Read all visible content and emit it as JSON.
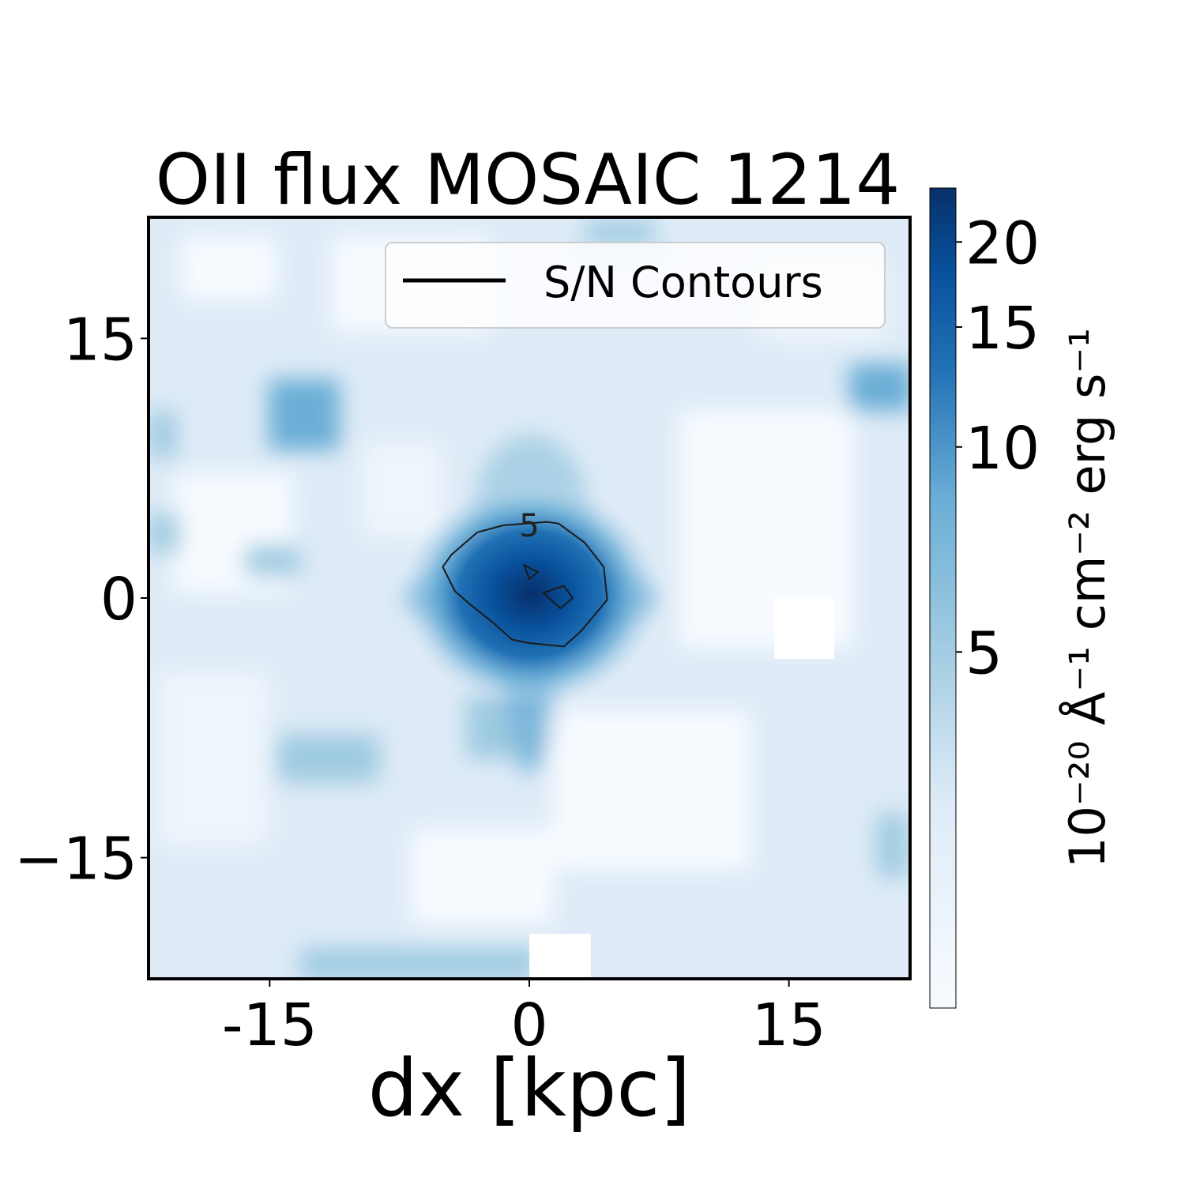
{
  "chart_data": {
    "type": "heatmap",
    "title": "OII flux MOSAIC 1214",
    "xlabel": "dx [kpc]",
    "ylabel": "",
    "xlim": [
      -22,
      22
    ],
    "ylim": [
      -22,
      22
    ],
    "x_ticks": [
      {
        "value": -15,
        "label": "-15"
      },
      {
        "value": 0,
        "label": "0"
      },
      {
        "value": 15,
        "label": "15"
      }
    ],
    "y_ticks": [
      {
        "value": 15,
        "label": "15"
      },
      {
        "value": 0,
        "label": "0"
      },
      {
        "value": -15,
        "label": "−15"
      }
    ],
    "colormap": "Blues",
    "colors": {
      "low": "#f7fbff",
      "mid": "#6baed6",
      "high": "#08306b"
    },
    "colorbar": {
      "scale": "log",
      "range": [
        1.5,
        24
      ],
      "ticks": [
        {
          "value": 5,
          "label": "5"
        },
        {
          "value": 10,
          "label": "10"
        },
        {
          "value": 15,
          "label": "15"
        },
        {
          "value": 20,
          "label": "20"
        }
      ],
      "label": "10⁻²⁰ Å⁻¹ cm⁻² erg s⁻¹"
    },
    "peak": {
      "x": 0,
      "y": 0,
      "value": 23
    },
    "contours": [
      {
        "level": 5,
        "label": "5",
        "points": [
          [
            -1.5,
            4.2
          ],
          [
            -3.0,
            3.8
          ],
          [
            -4.5,
            2.5
          ],
          [
            -5.0,
            1.8
          ],
          [
            -4.3,
            0.4
          ],
          [
            -3.5,
            -0.3
          ],
          [
            -2.0,
            -1.5
          ],
          [
            -1.0,
            -2.4
          ],
          [
            0.0,
            -2.6
          ],
          [
            2.0,
            -2.8
          ],
          [
            3.0,
            -1.9
          ],
          [
            4.5,
            -0.1
          ],
          [
            4.3,
            1.8
          ],
          [
            3.2,
            3.2
          ],
          [
            1.7,
            4.3
          ],
          [
            1.0,
            4.4
          ]
        ]
      },
      {
        "level": 5,
        "label": "",
        "points": [
          [
            -0.3,
            1.9
          ],
          [
            0.5,
            1.5
          ],
          [
            0.0,
            1.1
          ]
        ]
      },
      {
        "level": 5,
        "label": "",
        "points": [
          [
            0.8,
            0.3
          ],
          [
            2.0,
            0.7
          ],
          [
            2.5,
            0.0
          ],
          [
            1.8,
            -0.6
          ]
        ]
      }
    ],
    "masked_regions": [
      {
        "x": [
          14.5,
          17.9
        ],
        "y": [
          -3.5,
          -0.1
        ]
      },
      {
        "x": 0.0,
        "y": [
          -19.0,
          -22.0
        ],
        "x_max": 3.5
      }
    ],
    "legend": {
      "entries": [
        "S/N Contours"
      ],
      "location": "upper-right"
    }
  }
}
